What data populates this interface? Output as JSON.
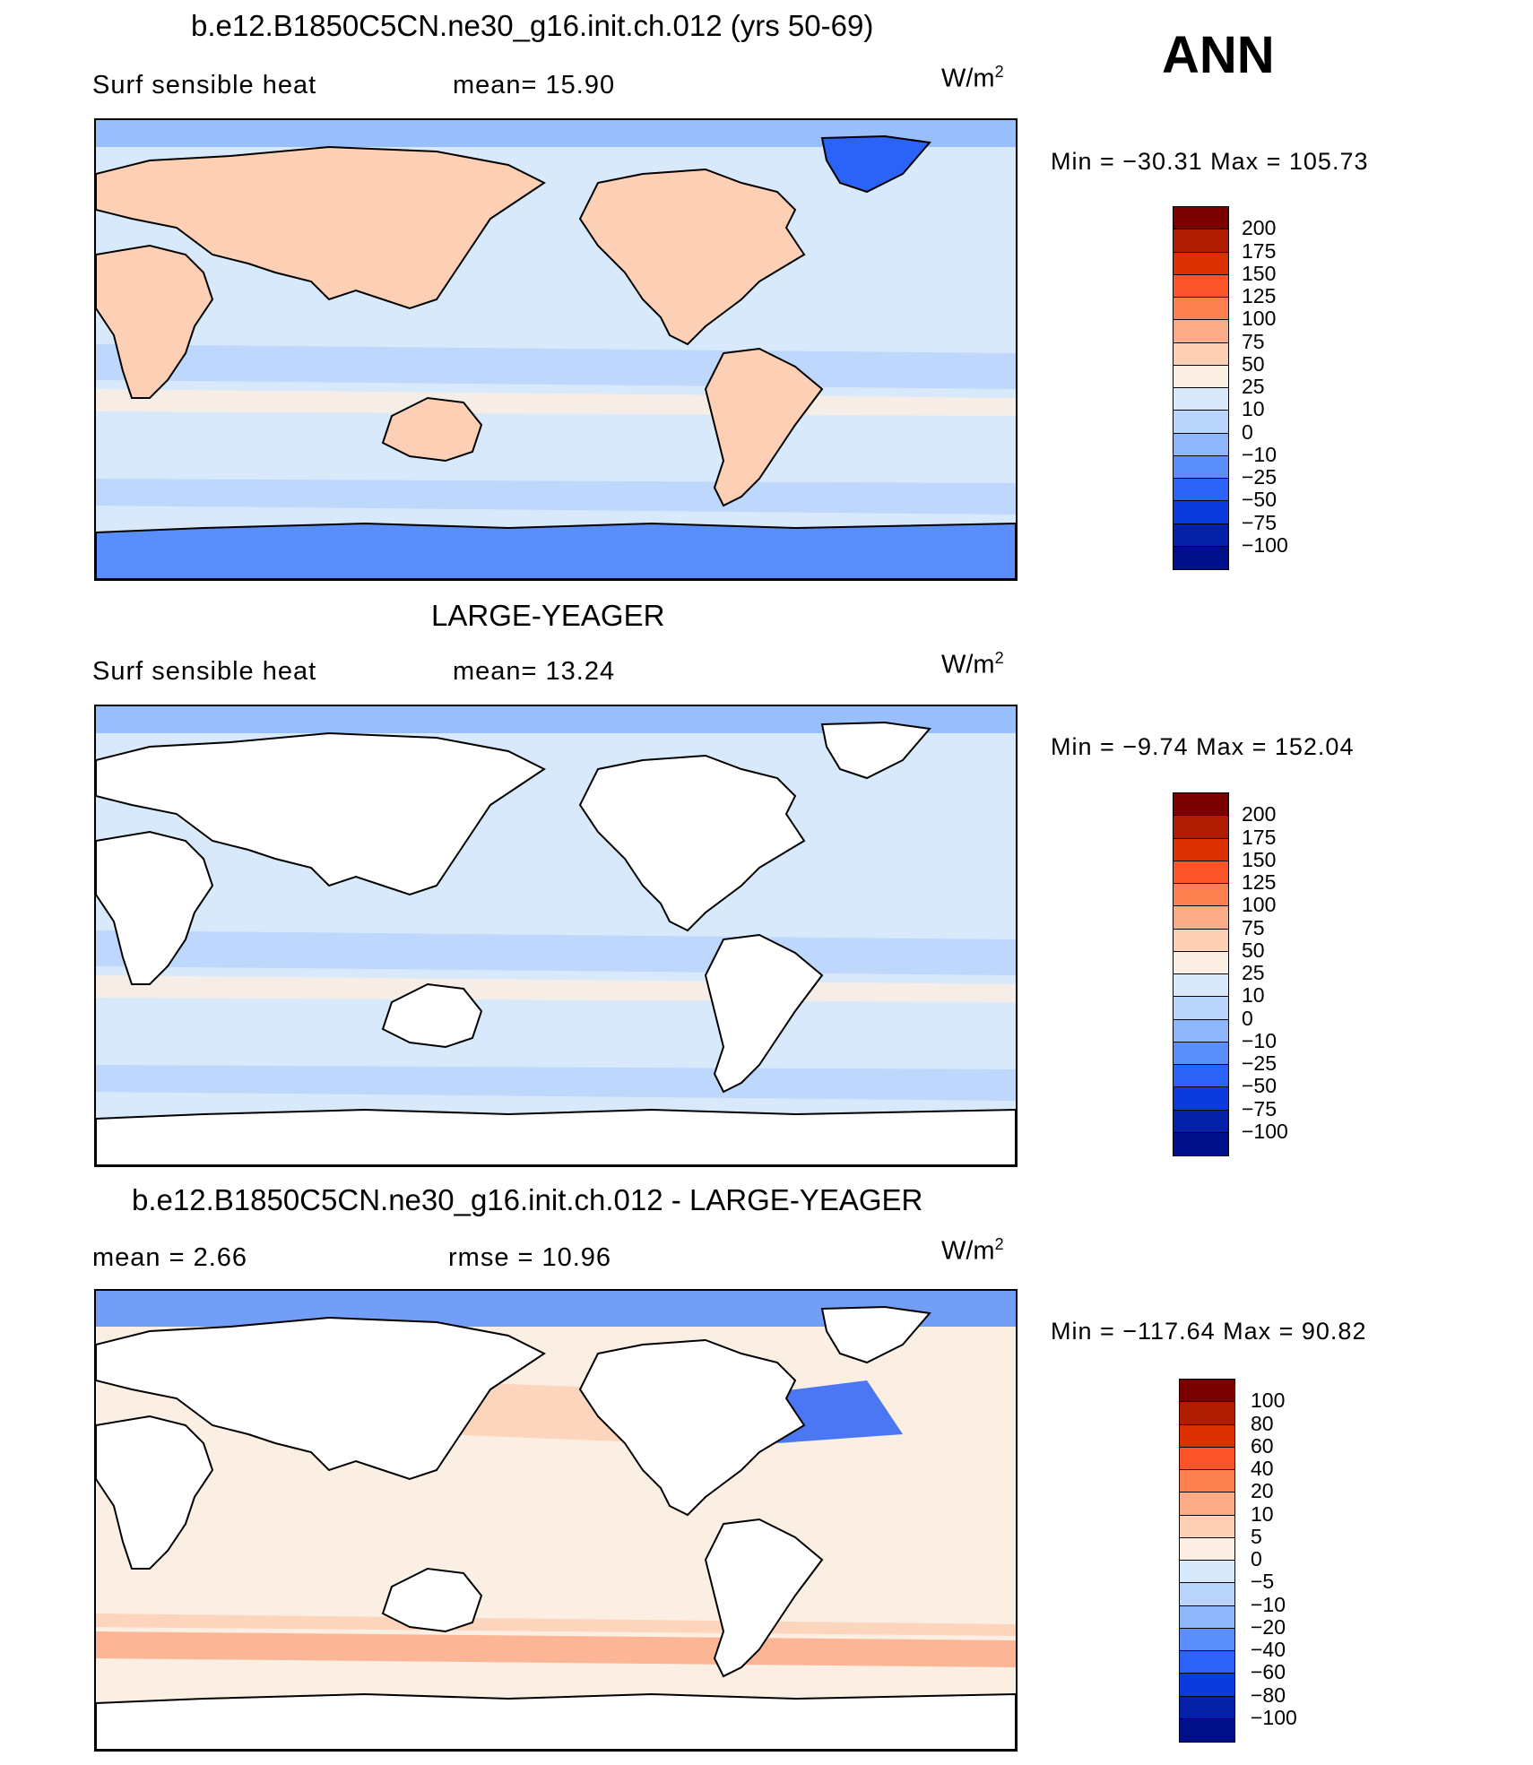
{
  "corner_label": "ANN",
  "panels": [
    {
      "title": "b.e12.B1850C5CN.ne30_g16.init.ch.012 (yrs 50-69)",
      "left_text": "Surf  sensible  heat",
      "stat_text": "mean=   15.90",
      "units": "W/m",
      "units_exp": "2",
      "minmax": "Min  =  −30.31  Max  =  105.73",
      "colorbar": {
        "labels": [
          "200",
          "175",
          "150",
          "125",
          "100",
          "75",
          "50",
          "25",
          "10",
          "0",
          "−10",
          "−25",
          "−50",
          "−75",
          "−100"
        ],
        "colors": [
          "#7a0000",
          "#b01c00",
          "#dd3000",
          "#fa5428",
          "#fd8050",
          "#fcab88",
          "#fdd0b6",
          "#fbeee2",
          "#d8e9fb",
          "#b9d5fb",
          "#8eb6fb",
          "#5a8ffb",
          "#2b62f8",
          "#0a3bde",
          "#0521a8",
          "#00108a"
        ]
      },
      "fill_color": "#d8e9fb",
      "land_color": "#fdd0b6",
      "polar_color": "#5a8ffb"
    },
    {
      "title": "LARGE-YEAGER",
      "left_text": "Surf  sensible  heat",
      "stat_text": "mean=   13.24",
      "units": "W/m",
      "units_exp": "2",
      "minmax": "Min  =    −9.74  Max  =  152.04",
      "colorbar": {
        "labels": [
          "200",
          "175",
          "150",
          "125",
          "100",
          "75",
          "50",
          "25",
          "10",
          "0",
          "−10",
          "−25",
          "−50",
          "−75",
          "−100"
        ],
        "colors": [
          "#7a0000",
          "#b01c00",
          "#dd3000",
          "#fa5428",
          "#fd8050",
          "#fcab88",
          "#fdd0b6",
          "#fbeee2",
          "#d8e9fb",
          "#b9d5fb",
          "#8eb6fb",
          "#5a8ffb",
          "#2b62f8",
          "#0a3bde",
          "#0521a8",
          "#00108a"
        ]
      },
      "fill_color": "#d8e9fb",
      "land_color": "#ffffff",
      "polar_color": "#b9d5fb"
    },
    {
      "title": "b.e12.B1850C5CN.ne30_g16.init.ch.012 - LARGE-YEAGER",
      "left_text": "mean  =      2.66",
      "stat_text": "rmse  =    10.96",
      "units": "W/m",
      "units_exp": "2",
      "minmax": "Min  =  −117.64  Max  =    90.82",
      "colorbar": {
        "labels": [
          "100",
          "80",
          "60",
          "40",
          "20",
          "10",
          "5",
          "0",
          "−5",
          "−10",
          "−20",
          "−40",
          "−60",
          "−80",
          "−100"
        ],
        "colors": [
          "#7a0000",
          "#b01c00",
          "#dd3000",
          "#fa5428",
          "#fd8050",
          "#fcab88",
          "#fdd0b6",
          "#fbeee2",
          "#d8e9fb",
          "#b9d5fb",
          "#8eb6fb",
          "#5a8ffb",
          "#2b62f8",
          "#0a3bde",
          "#0521a8",
          "#00108a"
        ]
      },
      "fill_color": "#fbeee2",
      "land_color": "#ffffff",
      "polar_color": "#5a8ffb"
    }
  ]
}
